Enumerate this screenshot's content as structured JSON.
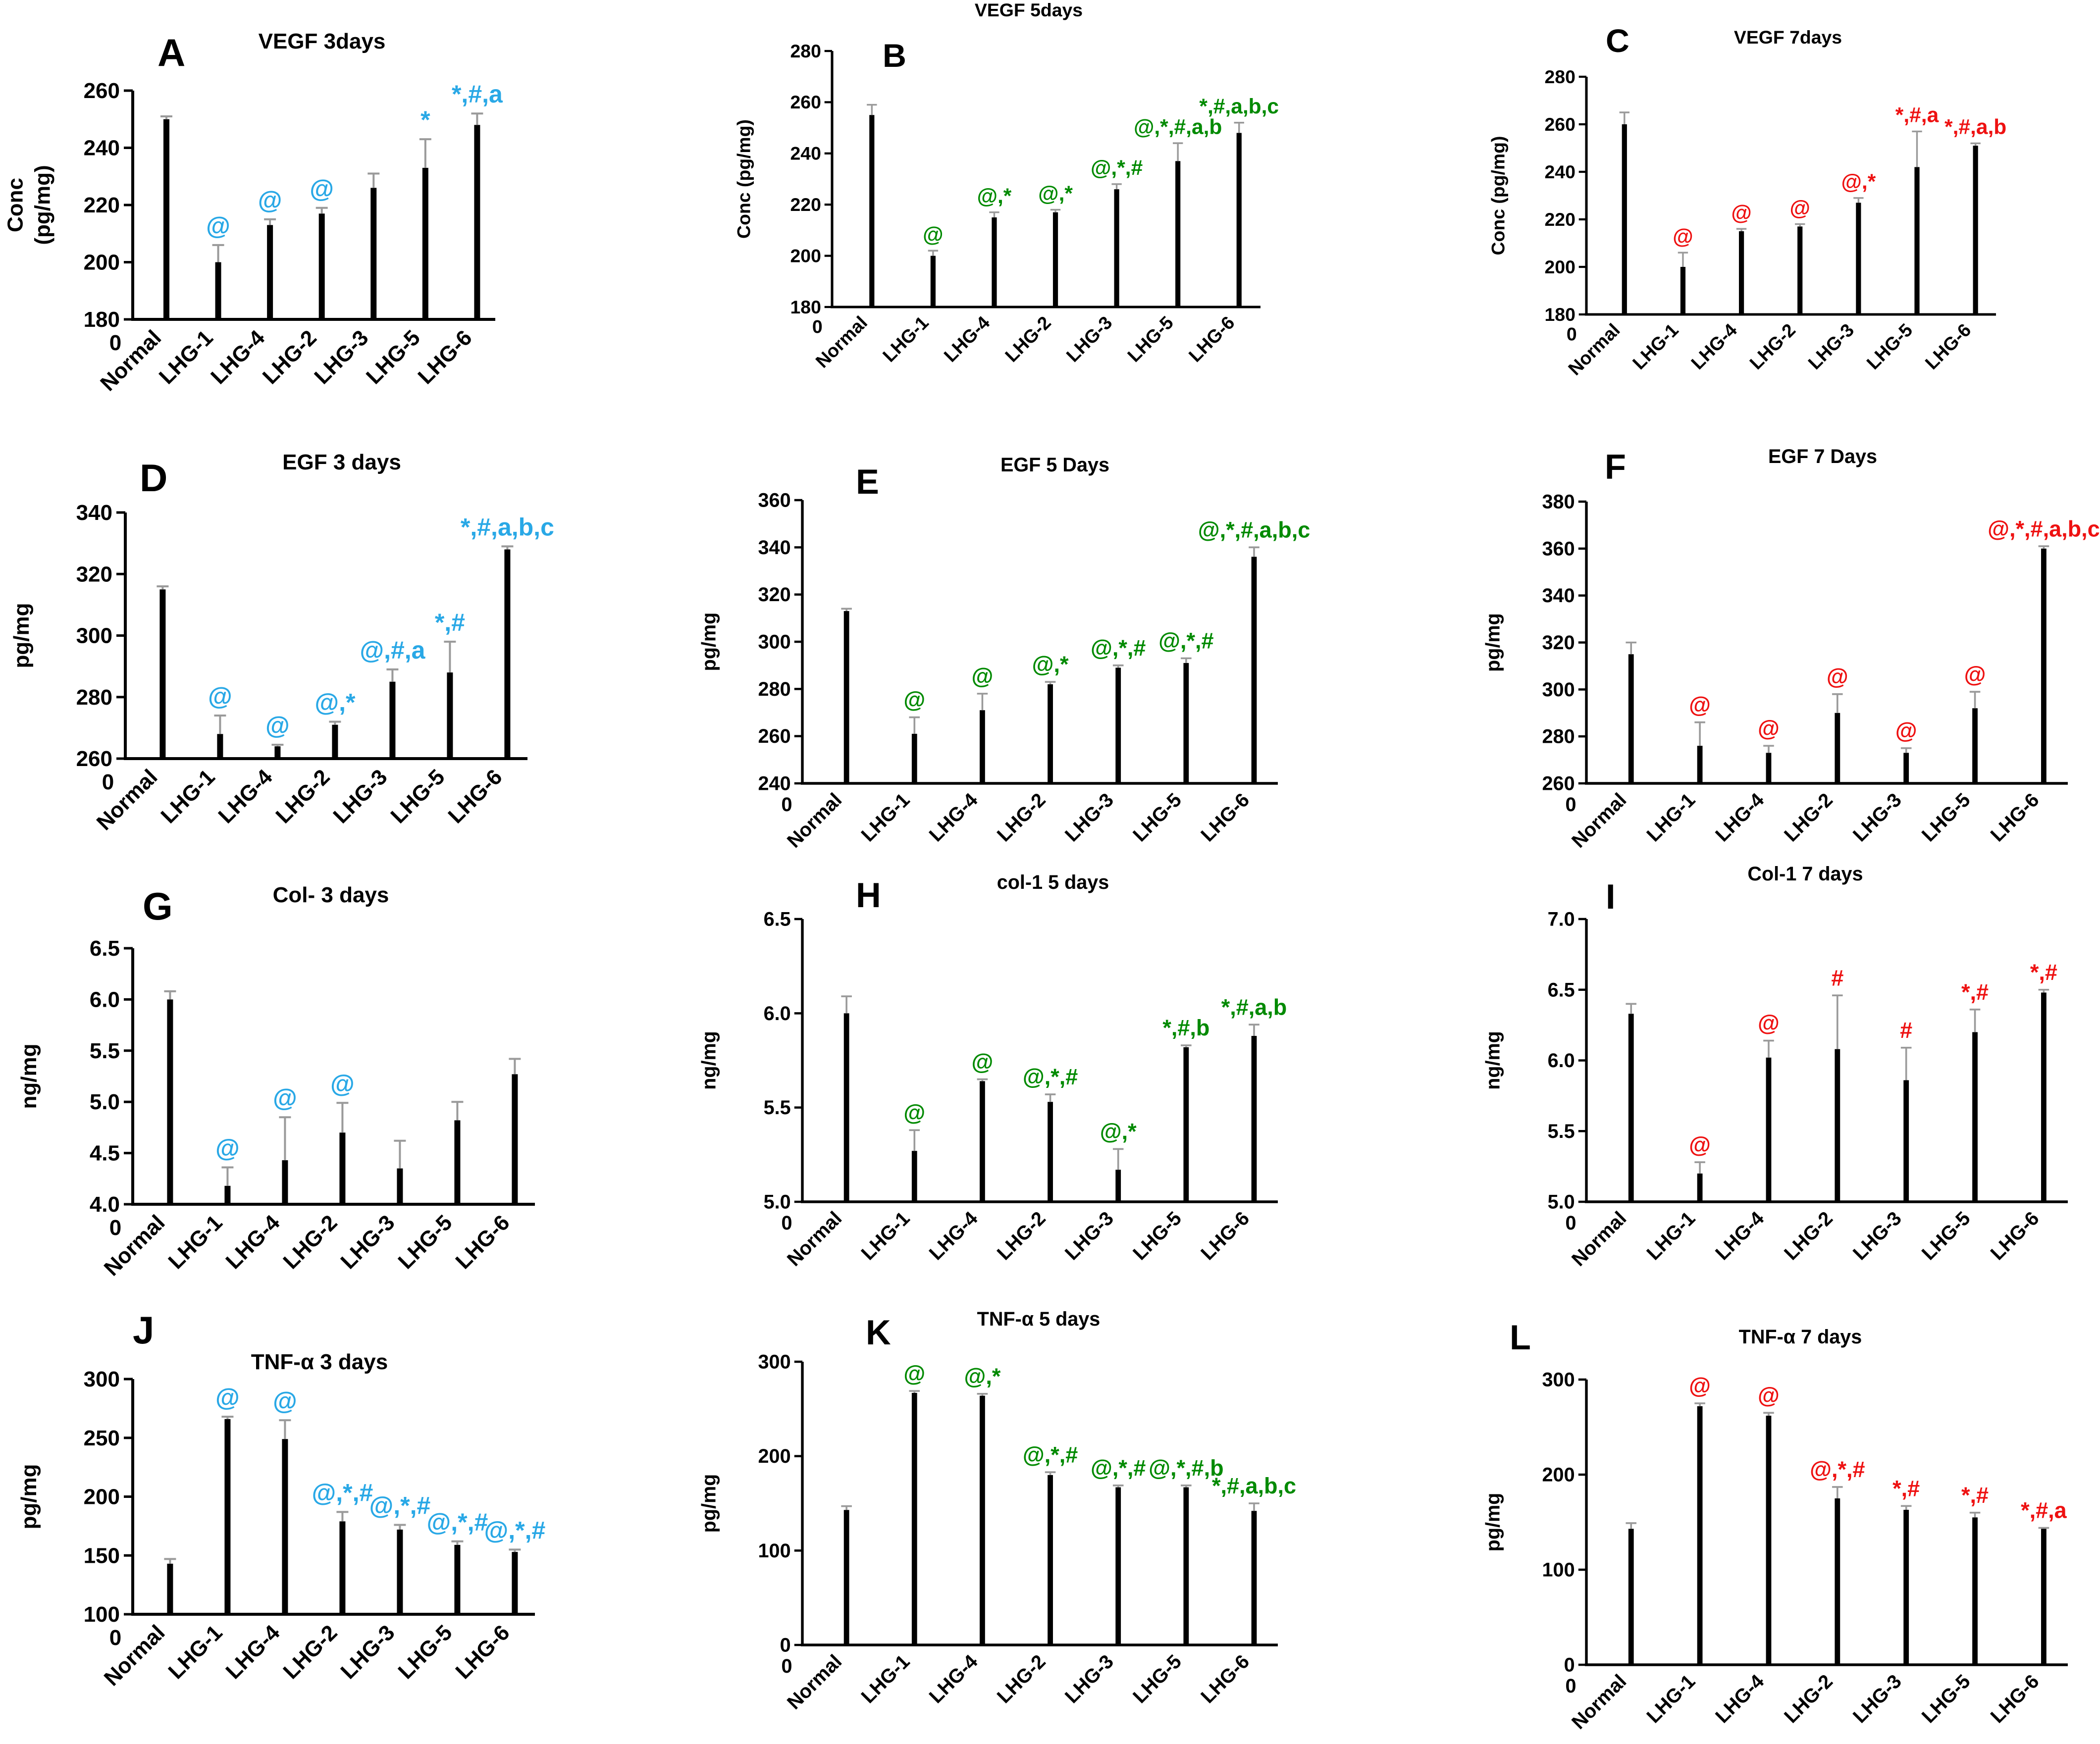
{
  "figure": {
    "colors": {
      "bar": "#000000",
      "error": "#9a9a9a",
      "blue": "#29a8e6",
      "green": "#008a00",
      "red": "#ee1111",
      "axis": "#000000"
    },
    "categories": [
      "Normal",
      "LHG-1",
      "LHG-4",
      "LHG-2",
      "LHG-3",
      "LHG-5",
      "LHG-6"
    ]
  },
  "chart_data": [
    {
      "id": "A",
      "type": "bar",
      "letter": "A",
      "title": "VEGF 3days",
      "ylabel": [
        "Conc",
        "(pg/mg)"
      ],
      "categories": [
        "Normal",
        "LHG-1",
        "LHG-4",
        "LHG-2",
        "LHG-3",
        "LHG-5",
        "LHG-6"
      ],
      "values": [
        250,
        200,
        213,
        217,
        226,
        233,
        248
      ],
      "errors": [
        1,
        6,
        2,
        2,
        5,
        10,
        4
      ],
      "ylim": [
        180,
        260
      ],
      "yticks": [
        "180",
        "200",
        "220",
        "240",
        "260"
      ],
      "origin_label": "0",
      "annotation_color": "blue",
      "annotations": [
        "",
        "@",
        "@",
        "@",
        "",
        "*",
        "*,#,a"
      ]
    },
    {
      "id": "B",
      "type": "bar",
      "letter": "B",
      "title": "VEGF 5days",
      "ylabel": [
        "Conc (pg/mg)"
      ],
      "categories": [
        "Normal",
        "LHG-1",
        "LHG-4",
        "LHG-2",
        "LHG-3",
        "LHG-5",
        "LHG-6"
      ],
      "values": [
        255,
        200,
        215,
        217,
        226,
        237,
        248
      ],
      "errors": [
        4,
        2,
        2,
        1,
        2,
        7,
        4
      ],
      "ylim": [
        180,
        280
      ],
      "yticks": [
        "180",
        "200",
        "220",
        "240",
        "260",
        "280"
      ],
      "origin_label": "0",
      "annotation_color": "green",
      "annotations": [
        "",
        "@",
        "@,*",
        "@,*",
        "@,*,#",
        "@,*,#,a,b",
        "*,#,a,b,c"
      ]
    },
    {
      "id": "C",
      "type": "bar",
      "letter": "C",
      "title": "VEGF 7days",
      "ylabel": [
        "Conc (pg/mg)"
      ],
      "categories": [
        "Normal",
        "LHG-1",
        "LHG-4",
        "LHG-2",
        "LHG-3",
        "LHG-5",
        "LHG-6"
      ],
      "values": [
        260,
        200,
        215,
        217,
        227,
        242,
        251
      ],
      "errors": [
        5,
        6,
        1,
        1,
        2,
        15,
        1
      ],
      "ylim": [
        180,
        280
      ],
      "yticks": [
        "180",
        "200",
        "220",
        "240",
        "260",
        "280"
      ],
      "origin_label": "0",
      "annotation_color": "red",
      "annotations": [
        "",
        "@",
        "@",
        "@",
        "@,*",
        "*,#,a",
        "*,#,a,b"
      ]
    },
    {
      "id": "D",
      "type": "bar",
      "letter": "D",
      "title": "EGF 3 days",
      "ylabel": [
        "pg/mg"
      ],
      "categories": [
        "Normal",
        "LHG-1",
        "LHG-4",
        "LHG-2",
        "LHG-3",
        "LHG-5",
        "LHG-6"
      ],
      "values": [
        315,
        268,
        264,
        271,
        285,
        288,
        328
      ],
      "errors": [
        1,
        6,
        0.5,
        1,
        4,
        10,
        1
      ],
      "ylim": [
        260,
        340
      ],
      "yticks": [
        "260",
        "280",
        "300",
        "320",
        "340"
      ],
      "origin_label": "0",
      "annotation_color": "blue",
      "annotations": [
        "",
        "@",
        "@",
        "@,*",
        "@,#,a",
        "*,#",
        "*,#,a,b,c"
      ]
    },
    {
      "id": "E",
      "type": "bar",
      "letter": "E",
      "title": "EGF 5 Days",
      "ylabel": [
        "pg/mg"
      ],
      "categories": [
        "Normal",
        "LHG-1",
        "LHG-4",
        "LHG-2",
        "LHG-3",
        "LHG-5",
        "LHG-6"
      ],
      "values": [
        313,
        261,
        271,
        282,
        289,
        291,
        336
      ],
      "errors": [
        1,
        7,
        7,
        1,
        1,
        2,
        4
      ],
      "ylim": [
        240,
        360
      ],
      "yticks": [
        "240",
        "260",
        "280",
        "300",
        "320",
        "340",
        "360"
      ],
      "origin_label": "0",
      "annotation_color": "green",
      "annotations": [
        "",
        "@",
        "@",
        "@,*",
        "@,*,#",
        "@,*,#",
        "@,*,#,a,b,c"
      ]
    },
    {
      "id": "F",
      "type": "bar",
      "letter": "F",
      "title": "EGF 7 Days",
      "ylabel": [
        "pg/mg"
      ],
      "categories": [
        "Normal",
        "LHG-1",
        "LHG-4",
        "LHG-2",
        "LHG-3",
        "LHG-5",
        "LHG-6"
      ],
      "values": [
        315,
        276,
        273,
        290,
        273,
        292,
        360
      ],
      "errors": [
        5,
        10,
        3,
        8,
        2,
        7,
        1
      ],
      "ylim": [
        260,
        380
      ],
      "yticks": [
        "260",
        "280",
        "300",
        "320",
        "340",
        "360",
        "380"
      ],
      "origin_label": "0",
      "annotation_color": "red",
      "annotations": [
        "",
        "@",
        "@",
        "@",
        "@",
        "@",
        "@,*,#,a,b,c"
      ]
    },
    {
      "id": "G",
      "type": "bar",
      "letter": "G",
      "title": "Col- 3 days",
      "ylabel": [
        "ng/mg"
      ],
      "categories": [
        "Normal",
        "LHG-1",
        "LHG-4",
        "LHG-2",
        "LHG-3",
        "LHG-5",
        "LHG-6"
      ],
      "values": [
        6.0,
        4.18,
        4.43,
        4.7,
        4.35,
        4.82,
        5.27
      ],
      "errors": [
        0.08,
        0.18,
        0.42,
        0.29,
        0.27,
        0.18,
        0.15
      ],
      "ylim": [
        4.0,
        6.5
      ],
      "yticks": [
        "4.0",
        "4.5",
        "5.0",
        "5.5",
        "6.0",
        "6.5"
      ],
      "origin_label": "0",
      "annotation_color": "blue",
      "annotations": [
        "",
        "@",
        "@",
        "@",
        "",
        "",
        ""
      ]
    },
    {
      "id": "H",
      "type": "bar",
      "letter": "H",
      "title": "col-1 5 days",
      "ylabel": [
        "ng/mg"
      ],
      "categories": [
        "Normal",
        "LHG-1",
        "LHG-4",
        "LHG-2",
        "LHG-3",
        "LHG-5",
        "LHG-6"
      ],
      "values": [
        6.0,
        5.27,
        5.64,
        5.53,
        5.17,
        5.82,
        5.88
      ],
      "errors": [
        0.09,
        0.11,
        0.01,
        0.04,
        0.11,
        0.01,
        0.06
      ],
      "ylim": [
        5.0,
        6.5
      ],
      "yticks": [
        "5.0",
        "5.5",
        "6.0",
        "6.5"
      ],
      "origin_label": "0",
      "annotation_color": "green",
      "annotations": [
        "",
        "@",
        "@",
        "@,*,#",
        "@,*",
        "*,#,b",
        "*,#,a,b"
      ]
    },
    {
      "id": "I",
      "type": "bar",
      "letter": "I",
      "title": "Col-1 7 days",
      "ylabel": [
        "ng/mg"
      ],
      "categories": [
        "Normal",
        "LHG-1",
        "LHG-4",
        "LHG-2",
        "LHG-3",
        "LHG-5",
        "LHG-6"
      ],
      "values": [
        6.33,
        5.2,
        6.02,
        6.08,
        5.86,
        6.2,
        6.48
      ],
      "errors": [
        0.07,
        0.08,
        0.12,
        0.38,
        0.23,
        0.16,
        0.02
      ],
      "ylim": [
        5.0,
        7.0
      ],
      "yticks": [
        "5.0",
        "5.5",
        "6.0",
        "6.5",
        "7.0"
      ],
      "origin_label": "0",
      "annotation_color": "red",
      "annotations": [
        "",
        "@",
        "@",
        "#",
        "#",
        "*,#",
        "*,#"
      ]
    },
    {
      "id": "J",
      "type": "bar",
      "letter": "J",
      "title": "TNF-α 3 days",
      "ylabel": [
        "pg/mg"
      ],
      "categories": [
        "Normal",
        "LHG-1",
        "LHG-4",
        "LHG-2",
        "LHG-3",
        "LHG-5",
        "LHG-6"
      ],
      "values": [
        143,
        266,
        249,
        179,
        172,
        159,
        153
      ],
      "errors": [
        4,
        2,
        16,
        8,
        4,
        3,
        2
      ],
      "ylim": [
        100,
        300
      ],
      "yticks": [
        "100",
        "150",
        "200",
        "250",
        "300"
      ],
      "origin_label": "0",
      "annotation_color": "blue",
      "annotations": [
        "",
        "@",
        "@",
        "@,*,#",
        "@,*,#",
        "@,*,#",
        "@,*,#"
      ]
    },
    {
      "id": "K",
      "type": "bar",
      "letter": "K",
      "title": "TNF-α 5 days",
      "ylabel": [
        "pg/mg"
      ],
      "categories": [
        "Normal",
        "LHG-1",
        "LHG-4",
        "LHG-2",
        "LHG-3",
        "LHG-5",
        "LHG-6"
      ],
      "values": [
        143,
        267,
        264,
        180,
        167,
        167,
        142
      ],
      "errors": [
        4,
        2,
        2,
        3,
        2,
        2,
        8
      ],
      "ylim": [
        0,
        300
      ],
      "yticks": [
        "0",
        "100",
        "200",
        "300"
      ],
      "origin_label": "0",
      "annotation_color": "green",
      "annotations": [
        "",
        "@",
        "@,*",
        "@,*,#",
        "@,*,#",
        "@,*,#,b",
        "*,#,a,b,c"
      ]
    },
    {
      "id": "L",
      "type": "bar",
      "letter": "L",
      "title": "TNF-α 7 days",
      "ylabel": [
        "pg/mg"
      ],
      "categories": [
        "Normal",
        "LHG-1",
        "LHG-4",
        "LHG-2",
        "LHG-3",
        "LHG-5",
        "LHG-6"
      ],
      "values": [
        143,
        272,
        262,
        175,
        163,
        155,
        143
      ],
      "errors": [
        6,
        3,
        3,
        12,
        4,
        5,
        1
      ],
      "ylim": [
        0,
        300
      ],
      "yticks": [
        "0",
        "100",
        "200",
        "300"
      ],
      "origin_label": "0",
      "annotation_color": "red",
      "annotations": [
        "",
        "@",
        "@",
        "@,*,#",
        "*,#",
        "*,#",
        "*,#,a"
      ]
    }
  ]
}
